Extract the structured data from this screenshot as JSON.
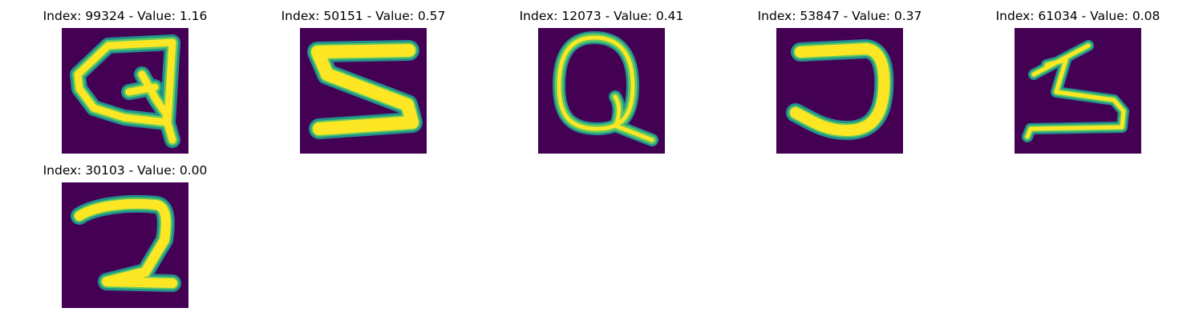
{
  "colors": {
    "background": "#440154",
    "stroke_outer": "#21918c",
    "stroke_mid": "#5ec962",
    "stroke_inner": "#fde725"
  },
  "panels": [
    {
      "title": "Index: 99324 - Value: 1.16",
      "glyph": "Q-like"
    },
    {
      "title": "Index: 50151 - Value: 0.57",
      "glyph": "S-like"
    },
    {
      "title": "Index: 12073 - Value: 0.41",
      "glyph": "Q"
    },
    {
      "title": "Index: 53847 - Value: 0.37",
      "glyph": "reversed-C"
    },
    {
      "title": "Index: 61034 - Value: 0.08",
      "glyph": "Z-like"
    },
    {
      "title": "Index: 30103 - Value: 0.00",
      "glyph": "2-like"
    }
  ]
}
